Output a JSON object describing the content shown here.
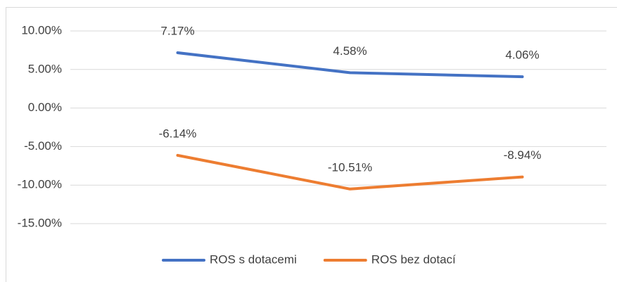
{
  "chart_data": {
    "type": "line",
    "categories": [
      null,
      null,
      null
    ],
    "series": [
      {
        "name": "ROS s dotacemi",
        "color": "#4472c4",
        "values": [
          7.17,
          4.58,
          4.06
        ],
        "value_labels": [
          "7.17%",
          "4.58%",
          "4.06%"
        ]
      },
      {
        "name": "ROS bez dotací",
        "color": "#ed7d31",
        "values": [
          -6.14,
          -10.51,
          -8.94
        ],
        "value_labels": [
          "-6.14%",
          "-10.51%",
          "-8.94%"
        ]
      }
    ],
    "ylim": [
      -15,
      10
    ],
    "yticks": [
      {
        "value": 10,
        "label": "10.00%"
      },
      {
        "value": 5,
        "label": "5.00%"
      },
      {
        "value": 0,
        "label": "0.00%"
      },
      {
        "value": -5,
        "label": "-5.00%"
      },
      {
        "value": -10,
        "label": "-10.00%"
      },
      {
        "value": -15,
        "label": "-15.00%"
      }
    ],
    "grid": true,
    "legend": "bottom"
  }
}
